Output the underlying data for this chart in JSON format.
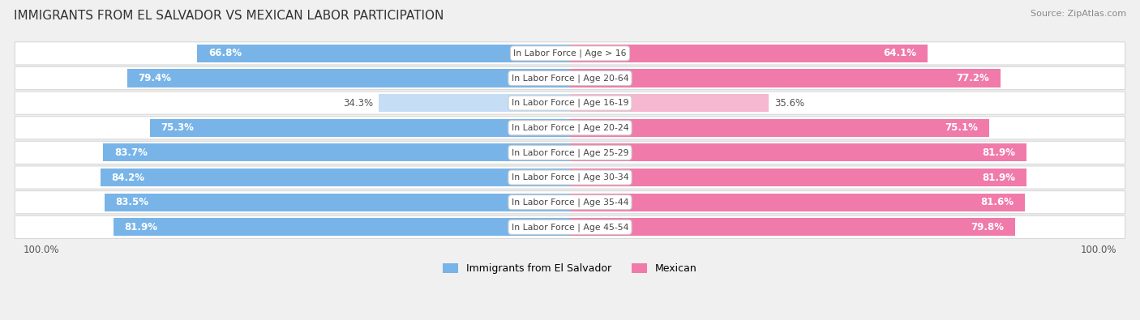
{
  "title": "IMMIGRANTS FROM EL SALVADOR VS MEXICAN LABOR PARTICIPATION",
  "source": "Source: ZipAtlas.com",
  "categories": [
    "In Labor Force | Age > 16",
    "In Labor Force | Age 20-64",
    "In Labor Force | Age 16-19",
    "In Labor Force | Age 20-24",
    "In Labor Force | Age 25-29",
    "In Labor Force | Age 30-34",
    "In Labor Force | Age 35-44",
    "In Labor Force | Age 45-54"
  ],
  "el_salvador_values": [
    66.8,
    79.4,
    34.3,
    75.3,
    83.7,
    84.2,
    83.5,
    81.9
  ],
  "mexican_values": [
    64.1,
    77.2,
    35.6,
    75.1,
    81.9,
    81.9,
    81.6,
    79.8
  ],
  "el_salvador_color_strong": "#78b4e8",
  "el_salvador_color_light": "#c5ddf5",
  "mexican_color_strong": "#f07aaa",
  "mexican_color_light": "#f5b8d0",
  "light_threshold": 50,
  "background_color": "#f0f0f0",
  "row_bg_color": "#ffffff",
  "x_max": 100.0,
  "legend_label_salvador": "Immigrants from El Salvador",
  "legend_label_mexican": "Mexican"
}
